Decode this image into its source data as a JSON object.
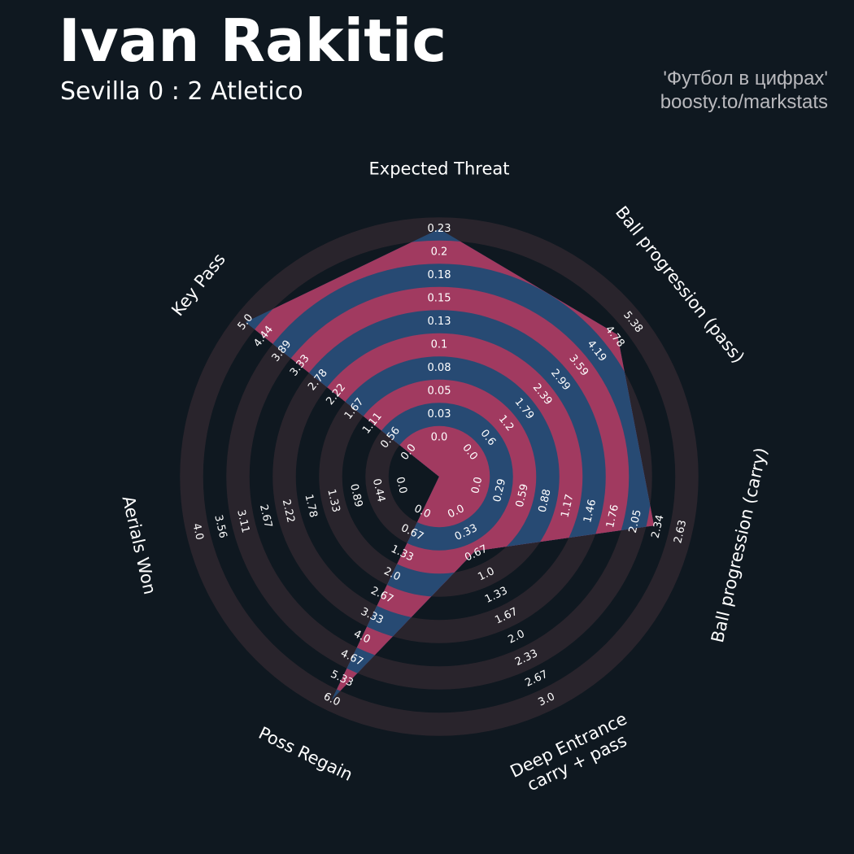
{
  "header": {
    "title": "Ivan Rakitic",
    "subtitle": "Sevilla 0 : 2 Atletico",
    "credit_line1": "'Футбол в цифрах'",
    "credit_line2": "boosty.to/markstats"
  },
  "colors": {
    "background": "#0f1820",
    "ring_dark": "#29242c",
    "ring_light": "#0f1820",
    "fill_blue": "#274a73",
    "fill_pink": "#a13a60",
    "text": "#ffffff"
  },
  "chart_data": {
    "type": "radar",
    "title": "Ivan Rakitic",
    "subtitle": "Sevilla 0 : 2 Atletico",
    "grid": true,
    "params": [
      {
        "label": [
          "Expected Threat"
        ],
        "value": 0.23,
        "max": 0.23,
        "ticks": [
          "0.0",
          "0.03",
          "0.05",
          "0.08",
          "0.1",
          "0.13",
          "0.15",
          "0.18",
          "0.2",
          "0.23"
        ]
      },
      {
        "label": [
          "Ball progression (pass)"
        ],
        "value": 4.95,
        "max": 5.38,
        "ticks": [
          "0.0",
          "0.6",
          "1.2",
          "1.79",
          "2.39",
          "2.99",
          "3.59",
          "4.19",
          "4.78",
          "5.38"
        ]
      },
      {
        "label": [
          "Ball progression (carry)"
        ],
        "value": 2.34,
        "max": 2.63,
        "ticks": [
          "0.0",
          "0.29",
          "0.59",
          "0.88",
          "1.17",
          "1.46",
          "1.76",
          "2.05",
          "2.34",
          "2.63"
        ]
      },
      {
        "label": [
          "Deep Entrance",
          "carry + pass"
        ],
        "value": 1.0,
        "max": 3.0,
        "ticks": [
          "0.0",
          "0.33",
          "0.67",
          "1.0",
          "1.33",
          "1.67",
          "2.0",
          "2.33",
          "2.67",
          "3.0"
        ]
      },
      {
        "label": [
          "Poss Regain"
        ],
        "value": 6.0,
        "max": 6.0,
        "ticks": [
          "0.0",
          "0.67",
          "1.33",
          "2.0",
          "2.67",
          "3.33",
          "4.0",
          "4.67",
          "5.33",
          "6.0"
        ]
      },
      {
        "label": [
          "Aerials Won"
        ],
        "value": 0.0,
        "max": 4.0,
        "ticks": [
          "0.0",
          "0.44",
          "0.89",
          "1.33",
          "1.78",
          "2.22",
          "2.67",
          "3.11",
          "3.56",
          "4.0"
        ]
      },
      {
        "label": [
          "Key Pass"
        ],
        "value": 5.0,
        "max": 5.0,
        "ticks": [
          "0.0",
          "0.56",
          "1.11",
          "1.67",
          "2.22",
          "2.78",
          "3.33",
          "3.89",
          "4.44",
          "5.0"
        ]
      }
    ]
  }
}
